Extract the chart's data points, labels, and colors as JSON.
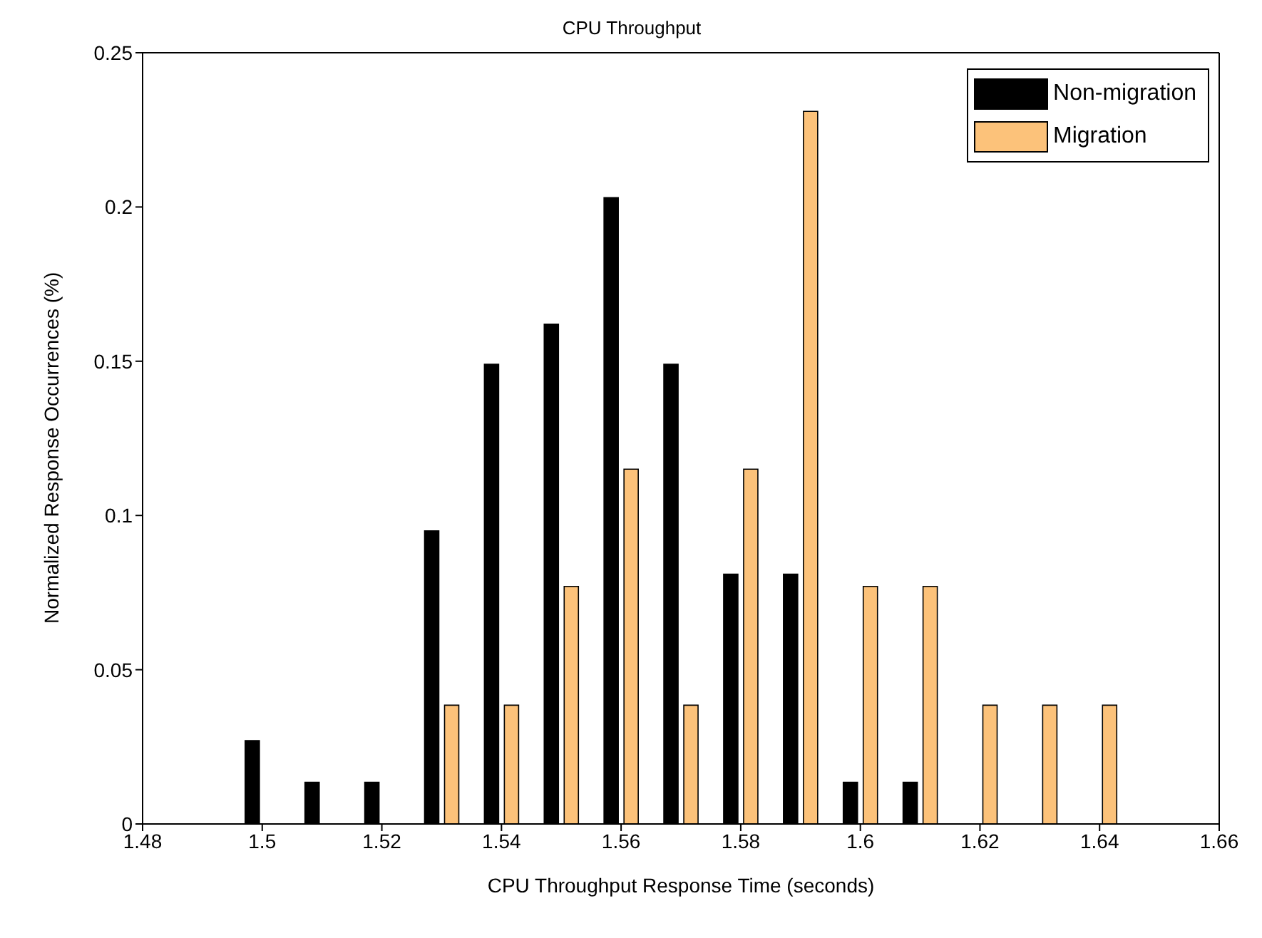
{
  "chart_data": {
    "type": "bar",
    "title": "CPU Throughput",
    "xlabel": "CPU Throughput Response Time (seconds)",
    "ylabel": "Normalized Response Occurrences (%)",
    "x": [
      1.5,
      1.51,
      1.52,
      1.53,
      1.54,
      1.55,
      1.56,
      1.57,
      1.58,
      1.59,
      1.6,
      1.61,
      1.62,
      1.63,
      1.64
    ],
    "series": [
      {
        "name": "Non-migration",
        "color": "#000000",
        "values": [
          0.027,
          0.0135,
          0.0135,
          0.095,
          0.149,
          0.162,
          0.203,
          0.149,
          0.081,
          0.081,
          0.0135,
          0.0135,
          0,
          0,
          0
        ]
      },
      {
        "name": "Migration",
        "color": "#fcc27a",
        "values": [
          0,
          0,
          0,
          0.0385,
          0.0385,
          0.077,
          0.115,
          0.0385,
          0.115,
          0.231,
          0.077,
          0.077,
          0.0385,
          0.0385,
          0.0385
        ]
      }
    ],
    "xlim": [
      1.48,
      1.66
    ],
    "xticks": [
      1.48,
      {
        "value": 1.5,
        "label": "1.5"
      },
      1.52,
      1.54,
      1.56,
      1.58,
      {
        "value": 1.6,
        "label": "1.6"
      },
      1.62,
      1.64,
      1.66
    ],
    "ylim": [
      0,
      0.25
    ],
    "yticks": [
      0,
      0.05,
      {
        "value": 0.1,
        "label": "0.1"
      },
      0.15,
      {
        "value": 0.2,
        "label": "0.2"
      },
      0.25
    ],
    "grid": false,
    "legend": "top right"
  }
}
